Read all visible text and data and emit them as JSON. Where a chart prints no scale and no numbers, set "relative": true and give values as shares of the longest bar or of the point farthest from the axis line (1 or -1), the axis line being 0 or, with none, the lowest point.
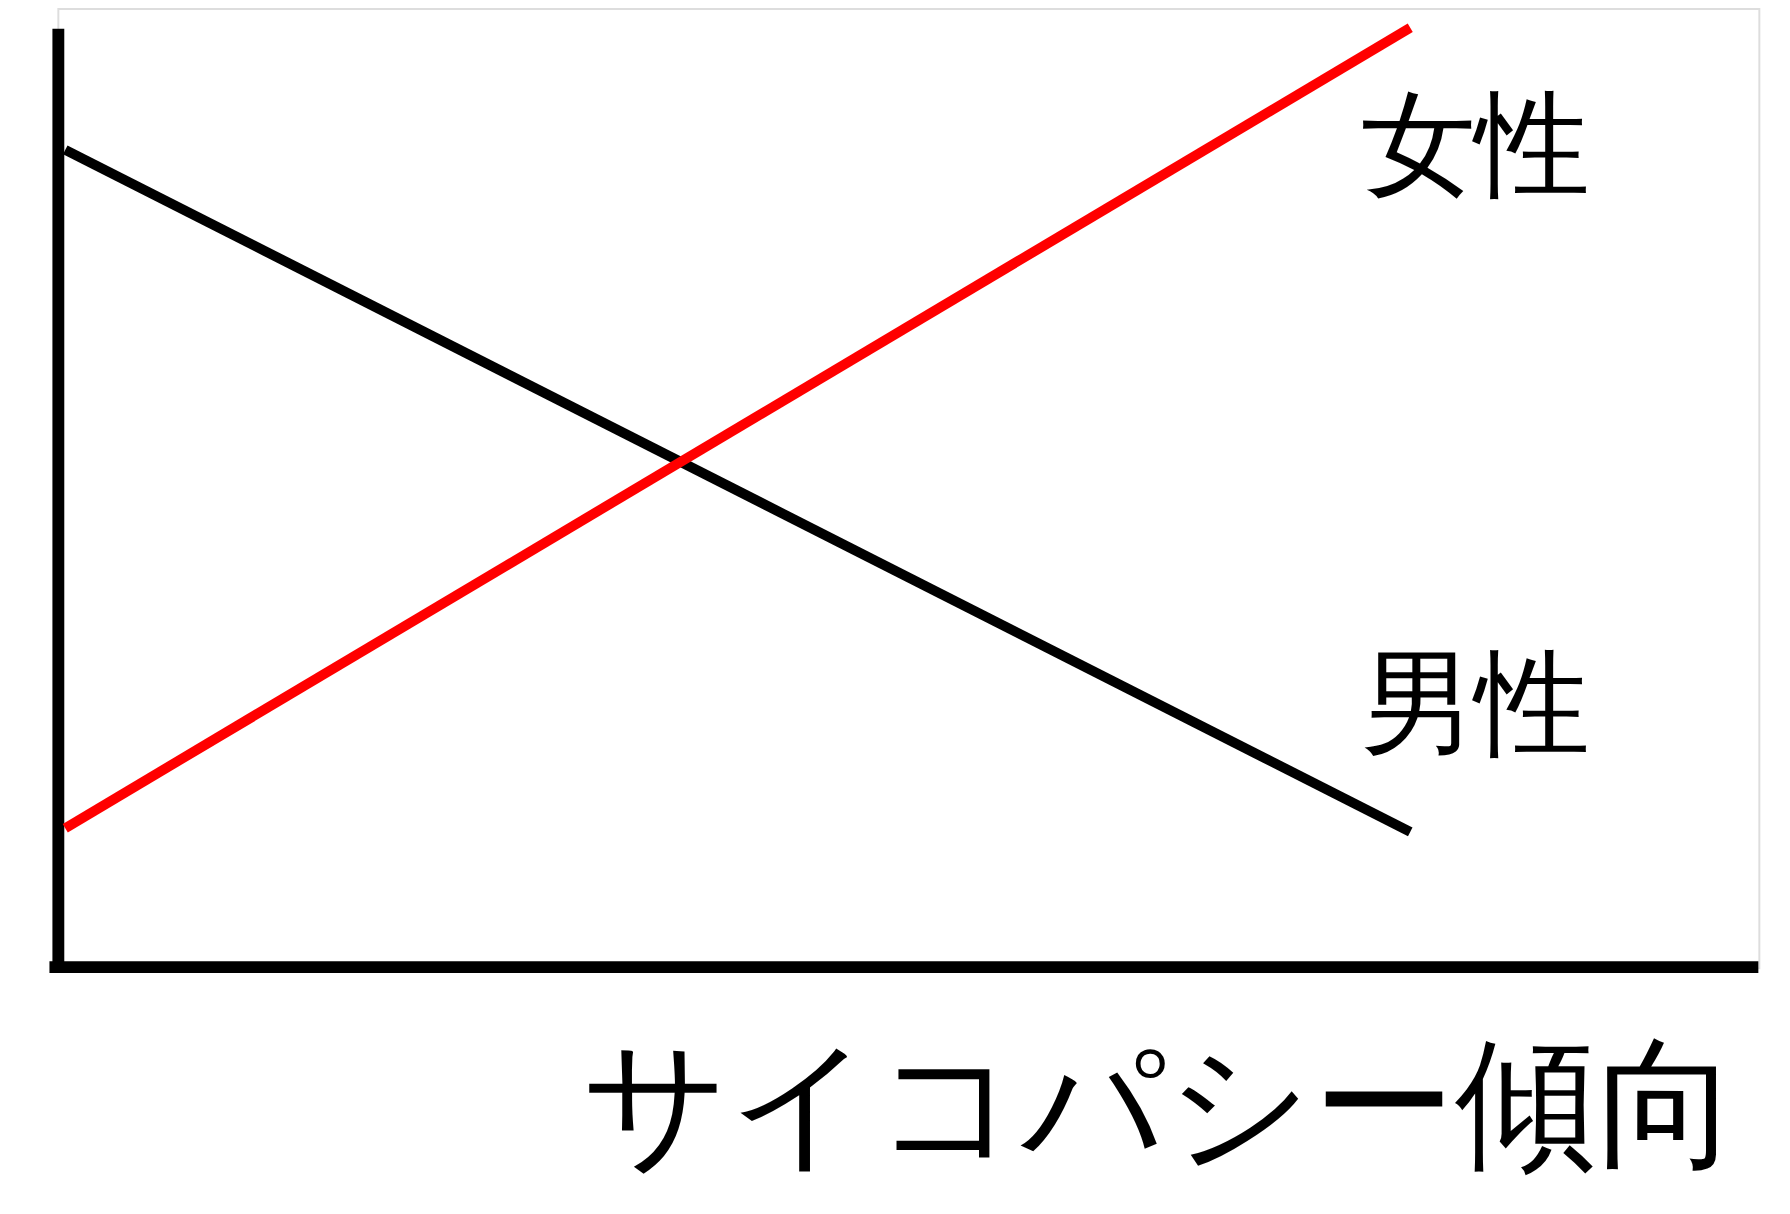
{
  "chart_data": {
    "type": "line",
    "relative": true,
    "xlabel": "サイコパシー傾向",
    "categories": [
      null,
      null
    ],
    "series": [
      {
        "name": "男性",
        "color": "#000000",
        "values": [
          0.87,
          0.144
        ]
      },
      {
        "name": "女性",
        "color": "#ff0000",
        "values": [
          0.148,
          1
        ]
      }
    ]
  }
}
